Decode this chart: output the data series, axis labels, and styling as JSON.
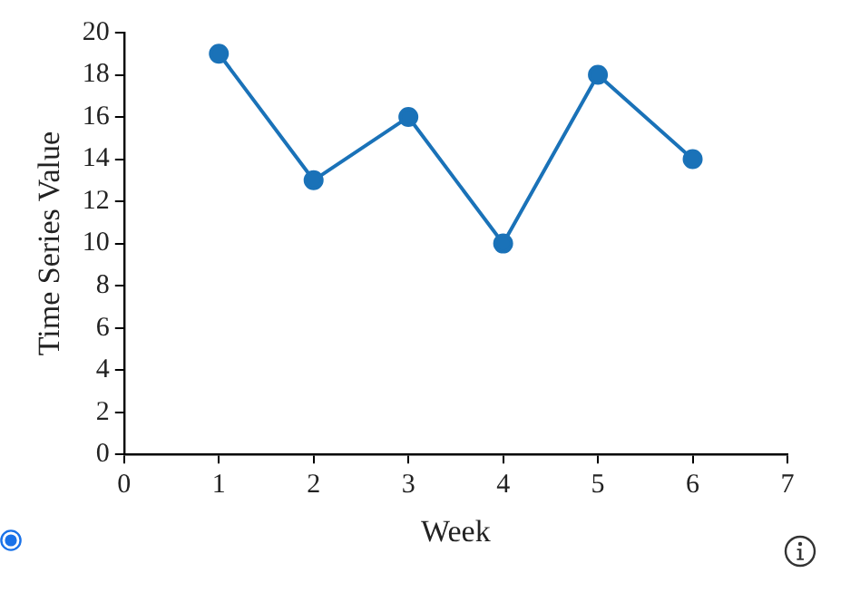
{
  "chart_data": {
    "type": "line",
    "xlabel": "Week",
    "ylabel": "Time Series Value",
    "x": [
      1,
      2,
      3,
      4,
      5,
      6
    ],
    "values": [
      19,
      13,
      16,
      10,
      18,
      14
    ],
    "color": "#1a72b8",
    "xlim": [
      0,
      7
    ],
    "xticks": [
      0,
      1,
      2,
      3,
      4,
      5,
      6,
      7
    ],
    "ylim": [
      0,
      20
    ],
    "yticks": [
      0,
      2,
      4,
      6,
      8,
      10,
      12,
      14,
      16,
      18,
      20
    ],
    "grid": false,
    "legend": false,
    "marker": "circle",
    "line_style": "solid"
  }
}
